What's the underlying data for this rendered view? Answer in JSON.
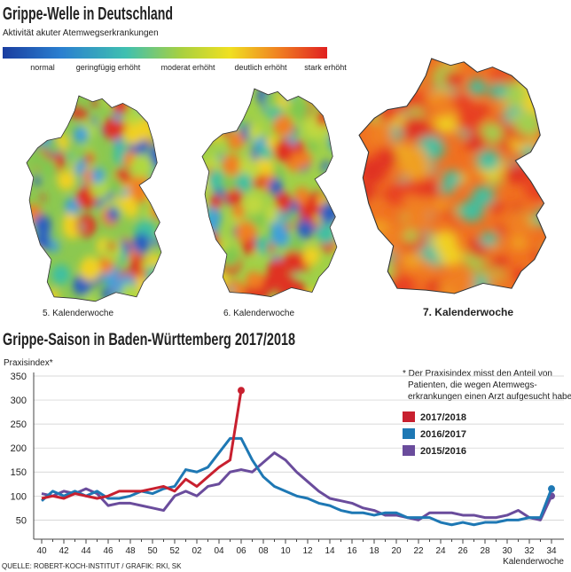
{
  "header": {
    "title": "Grippe-Welle in Deutschland",
    "subtitle": "Aktivität akuter Atemwegserkrankungen",
    "scale_labels": [
      "normal",
      "geringfügig erhöht",
      "moderat erhöht",
      "deutlich erhöht",
      "stark erhöht"
    ]
  },
  "maps": [
    {
      "caption": "5. Kalenderwoche"
    },
    {
      "caption": "6. Kalenderwoche"
    },
    {
      "caption": "7. Kalenderwoche"
    }
  ],
  "chart_data": {
    "type": "line",
    "title": "Grippe-Saison in Baden-Württemberg 2017/2018",
    "y_label": "Praxisindex*",
    "x_label": "Kalenderwoche",
    "note": [
      "* Der Praxisindex misst den Anteil von",
      "Patienten, die wegen Atemwegs-",
      "erkrankungen einen Arzt aufgesucht haben"
    ],
    "source": "QUELLE: ROBERT-KOCH-INSTITUT / GRAFIK: RKI, SK",
    "categories": [
      "40",
      null,
      "42",
      null,
      "44",
      null,
      "46",
      null,
      "48",
      null,
      "50",
      null,
      "52",
      null,
      "02",
      null,
      "04",
      null,
      "06",
      null,
      "08",
      null,
      "10",
      null,
      "12",
      null,
      "14",
      null,
      "16",
      null,
      "18",
      null,
      "20",
      null,
      "22",
      null,
      "24",
      null,
      "26",
      null,
      "28",
      null,
      "30",
      null,
      "32",
      null,
      "34"
    ],
    "series": [
      {
        "name": "2017/2018",
        "color": "#c8202f",
        "values": [
          95,
          100,
          95,
          105,
          100,
          95,
          100,
          110,
          110,
          110,
          115,
          120,
          110,
          135,
          120,
          140,
          160,
          175,
          320,
          null,
          null,
          null,
          null,
          null,
          null,
          null,
          null,
          null,
          null,
          null,
          null,
          null,
          null,
          null,
          null,
          null,
          null,
          null,
          null,
          null,
          null,
          null,
          null,
          null,
          null,
          null,
          null
        ]
      },
      {
        "name": "2016/2017",
        "color": "#1e78b4",
        "values": [
          90,
          110,
          100,
          110,
          100,
          110,
          95,
          95,
          100,
          110,
          105,
          115,
          120,
          155,
          150,
          160,
          190,
          220,
          220,
          175,
          140,
          120,
          110,
          100,
          95,
          85,
          80,
          70,
          65,
          65,
          60,
          65,
          65,
          55,
          55,
          55,
          45,
          40,
          45,
          40,
          45,
          45,
          50,
          50,
          55,
          55,
          115
        ]
      },
      {
        "name": "2015/2016",
        "color": "#6a4c9c",
        "values": [
          105,
          100,
          110,
          105,
          115,
          105,
          80,
          85,
          85,
          80,
          75,
          70,
          100,
          110,
          100,
          120,
          125,
          150,
          155,
          150,
          170,
          190,
          175,
          150,
          130,
          110,
          95,
          90,
          85,
          75,
          70,
          60,
          60,
          55,
          50,
          65,
          65,
          65,
          60,
          60,
          55,
          55,
          60,
          70,
          55,
          50,
          100
        ]
      }
    ],
    "ylim": [
      10,
      350
    ],
    "yticks": [
      50,
      100,
      150,
      200,
      250,
      300,
      350
    ],
    "grid": true
  }
}
